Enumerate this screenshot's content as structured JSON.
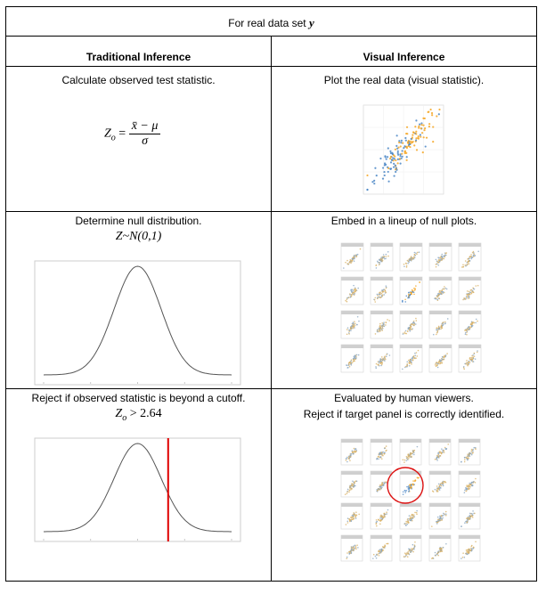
{
  "title": "For real data set y",
  "title_prefix": "For real data set ",
  "title_var": "y",
  "columns": {
    "traditional": "Traditional Inference",
    "visual": "Visual Inference"
  },
  "rows": [
    {
      "traditional": "Calculate observed test statistic.",
      "formula": {
        "lhs": "Z",
        "sub": "o",
        "eq": "=",
        "numerator": "x̄ − μ",
        "denominator": "σ"
      },
      "visual": "Plot the real data (visual statistic)."
    },
    {
      "traditional": "Determine null distribution.",
      "formula": "Z~N(0,1)",
      "visual": "Embed in a lineup of null plots."
    },
    {
      "traditional": "Reject if observed statistic is beyond a cutoff.",
      "formula": {
        "lhs": "Z",
        "sub": "o",
        "rest": " > 2.64"
      },
      "visual_line1": "Evaluated by human viewers.",
      "visual_line2": "Reject if target panel is correctly identified."
    }
  ],
  "colors": {
    "orange": "#f5a623",
    "blue": "#4a86c5",
    "cutoff": "#e00000",
    "circle": "#dd1111",
    "curve": "#555555"
  },
  "lineup_panels": [
    1,
    2,
    3,
    4,
    5,
    6,
    7,
    8,
    9,
    10,
    11,
    12,
    13,
    14,
    15,
    16,
    17,
    18,
    19,
    20
  ],
  "target_panel": 8
}
